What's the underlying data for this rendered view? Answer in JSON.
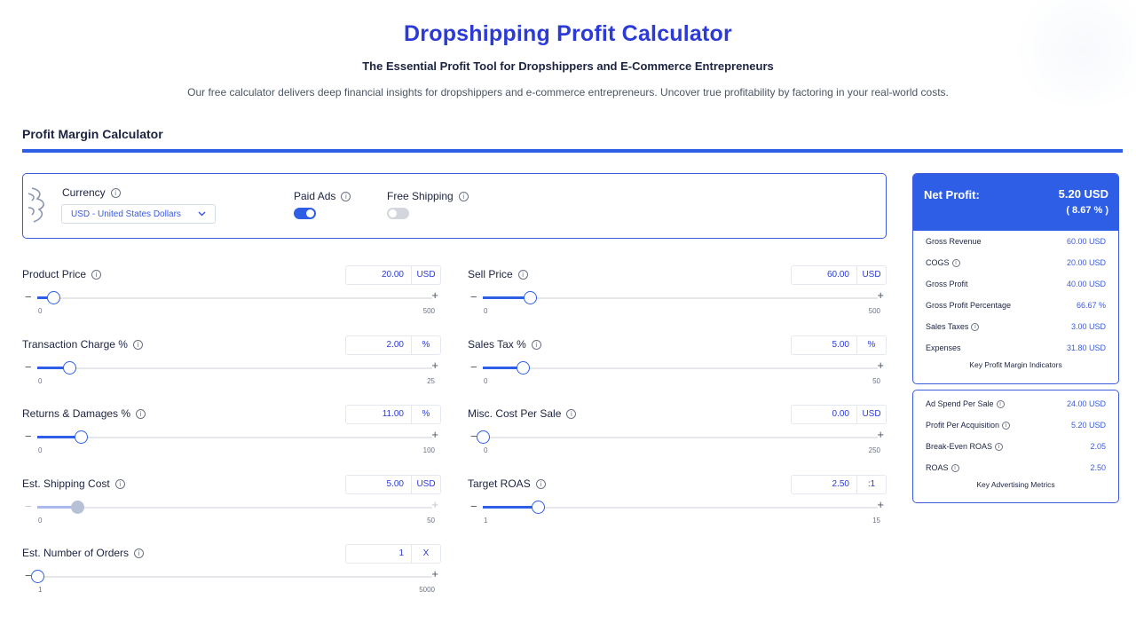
{
  "header": {
    "title": "Dropshipping Profit Calculator",
    "subtitle": "The Essential Profit Tool for Dropshippers and E-Commerce Entrepreneurs",
    "intro": "Our free calculator delivers deep financial insights for dropshippers and e-commerce entrepreneurs. Uncover true profitability by factoring in your real-world costs."
  },
  "section": {
    "title": "Profit Margin Calculator"
  },
  "settings": {
    "currency_label": "Currency",
    "currency_value": "USD - United States Dollars",
    "paid_ads_label": "Paid Ads",
    "paid_ads_on": true,
    "free_shipping_label": "Free Shipping",
    "free_shipping_on": false
  },
  "inputs": {
    "product_price": {
      "label": "Product Price",
      "value": "20.00",
      "unit": "USD",
      "min": "0",
      "max": "500",
      "level": 0.04
    },
    "sell_price": {
      "label": "Sell Price",
      "value": "60.00",
      "unit": "USD",
      "min": "0",
      "max": "500",
      "level": 0.12
    },
    "transaction_charge": {
      "label": "Transaction Charge %",
      "value": "2.00",
      "unit": "%",
      "min": "0",
      "max": "25",
      "level": 0.08
    },
    "sales_tax": {
      "label": "Sales Tax %",
      "value": "5.00",
      "unit": "%",
      "min": "0",
      "max": "50",
      "level": 0.1
    },
    "returns_damages": {
      "label": "Returns & Damages %",
      "value": "11.00",
      "unit": "%",
      "min": "0",
      "max": "100",
      "level": 0.11
    },
    "misc_cost": {
      "label": "Misc. Cost Per Sale",
      "value": "0.00",
      "unit": "USD",
      "min": "0",
      "max": "250",
      "level": 0.0
    },
    "shipping_cost": {
      "label": "Est. Shipping Cost",
      "value": "5.00",
      "unit": "USD",
      "min": "0",
      "max": "50",
      "level": 0.1
    },
    "target_roas": {
      "label": "Target ROAS",
      "value": "2.50",
      "unit": ":1",
      "min": "1",
      "max": "15",
      "level": 0.14
    },
    "num_orders": {
      "label": "Est. Number of Orders",
      "value": "1",
      "unit": "X",
      "min": "1",
      "max": "5000",
      "level": 0.0
    }
  },
  "net_profit": {
    "label": "Net Profit:",
    "amount": "5.20 USD",
    "percent": "( 8.67 % )",
    "rows": [
      {
        "label": "Gross Revenue",
        "value": "60.00 USD"
      },
      {
        "label": "COGS",
        "value": "20.00 USD"
      },
      {
        "label": "Gross Profit",
        "value": "40.00 USD"
      },
      {
        "label": "Gross Profit Percentage",
        "value": "66.67 %"
      },
      {
        "label": "Sales Taxes",
        "value": "3.00 USD"
      },
      {
        "label": "Expenses",
        "value": "31.80 USD"
      }
    ],
    "footer": "Key Profit Margin Indicators"
  },
  "ad_metrics": {
    "rows": [
      {
        "label": "Ad Spend Per Sale",
        "value": "24.00 USD"
      },
      {
        "label": "Profit Per Acquisition",
        "value": "5.20 USD"
      },
      {
        "label": "Break-Even ROAS",
        "value": "2.05"
      },
      {
        "label": "ROAS",
        "value": "2.50"
      }
    ],
    "footer": "Key Advertising Metrics"
  },
  "colors": {
    "accent": "#2f5ee6",
    "title": "#2c3bd6",
    "text": "#1c2340"
  }
}
